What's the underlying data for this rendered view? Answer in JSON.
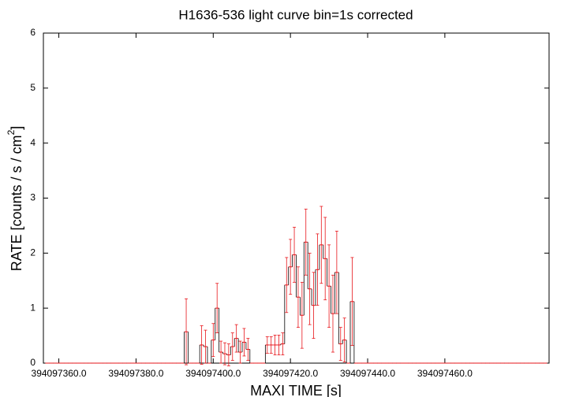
{
  "chart_data": {
    "type": "errorbar",
    "title": "H1636-536 light curve bin=1s corrected",
    "xlabel": "MAXI TIME [s]",
    "ylabel": "RATE [counts / s / cm",
    "ylabel_sup": "2",
    "ylabel_end": "]",
    "color": "#e8161b",
    "xlim": [
      394097356,
      394097487
    ],
    "ylim": [
      0,
      6
    ],
    "xticks": [
      {
        "value": 394097360,
        "label": "394097360.0"
      },
      {
        "value": 394097380,
        "label": "394097380.0"
      },
      {
        "value": 394097400,
        "label": "394097400.0"
      },
      {
        "value": 394097420,
        "label": "394097420.0"
      },
      {
        "value": 394097440,
        "label": "394097440.0"
      },
      {
        "value": 394097460,
        "label": "394097460.0"
      }
    ],
    "yticks": [
      0,
      1,
      2,
      3,
      4,
      5,
      6
    ],
    "x": [
      394097357,
      394097358,
      394097359,
      394097360,
      394097361,
      394097362,
      394097363,
      394097364,
      394097365,
      394097366,
      394097367,
      394097368,
      394097369,
      394097370,
      394097371,
      394097372,
      394097373,
      394097374,
      394097375,
      394097376,
      394097377,
      394097378,
      394097379,
      394097380,
      394097381,
      394097382,
      394097383,
      394097384,
      394097385,
      394097386,
      394097387,
      394097388,
      394097389,
      394097390,
      394097391,
      394097392,
      394097393,
      394097394,
      394097395,
      394097396,
      394097397,
      394097398,
      394097399,
      394097400,
      394097401,
      394097402,
      394097403,
      394097404,
      394097405,
      394097406,
      394097407,
      394097408,
      394097409,
      394097410,
      394097411,
      394097412,
      394097413,
      394097414,
      394097415,
      394097416,
      394097417,
      394097418,
      394097419,
      394097420,
      394097421,
      394097422,
      394097423,
      394097424,
      394097425,
      394097426,
      394097427,
      394097428,
      394097429,
      394097430,
      394097431,
      394097432,
      394097433,
      394097434,
      394097435,
      394097436,
      394097437,
      394097438,
      394097439,
      394097440,
      394097441,
      394097442,
      394097443,
      394097444,
      394097445,
      394097446,
      394097447,
      394097448,
      394097449,
      394097450,
      394097451,
      394097452,
      394097453,
      394097454,
      394097455,
      394097456,
      394097457,
      394097458,
      394097459,
      394097460,
      394097461,
      394097462,
      394097463,
      394097464,
      394097465,
      394097466,
      394097467,
      394097468,
      394097469,
      394097470,
      394097471,
      394097472,
      394097473,
      394097474,
      394097475,
      394097476,
      394097477,
      394097478,
      394097479,
      394097480,
      394097481,
      394097482,
      394097483,
      394097484,
      394097485,
      394097486
    ],
    "values": [
      0,
      0,
      0,
      0,
      0,
      0,
      0,
      0,
      0,
      0,
      0,
      0,
      0,
      0,
      0,
      0,
      0,
      0,
      0,
      0,
      0,
      0,
      0,
      0,
      0,
      0,
      0,
      0,
      0,
      0,
      0,
      0,
      0,
      0,
      0,
      0,
      0.57,
      0,
      0,
      0,
      0.33,
      0.3,
      0,
      0.42,
      1.0,
      0.2,
      0.17,
      0.15,
      0.3,
      0.45,
      0.2,
      0.38,
      0.25,
      0,
      0,
      0,
      0,
      0.33,
      0.33,
      0.33,
      0.33,
      0.35,
      1.42,
      1.75,
      1.97,
      1.2,
      0.87,
      2.2,
      1.35,
      1.05,
      1.7,
      2.15,
      1.9,
      1.4,
      0.9,
      1.65,
      0.35,
      0.42,
      0,
      1.12,
      0,
      0,
      0,
      0,
      0,
      0,
      0,
      0,
      0,
      0,
      0,
      0,
      0,
      0,
      0,
      0,
      0,
      0,
      0,
      0,
      0,
      0,
      0,
      0,
      0,
      0,
      0,
      0,
      0,
      0,
      0,
      0,
      0,
      0,
      0,
      0,
      0,
      0,
      0,
      0,
      0,
      0,
      0,
      0,
      0,
      0,
      0,
      0,
      0,
      0
    ],
    "errors": [
      0,
      0,
      0,
      0,
      0,
      0,
      0,
      0,
      0,
      0,
      0,
      0,
      0,
      0,
      0,
      0,
      0,
      0,
      0,
      0,
      0,
      0,
      0,
      0,
      0,
      0,
      0,
      0,
      0,
      0,
      0,
      0,
      0,
      0,
      0,
      0,
      0.6,
      0,
      0,
      0,
      0.35,
      0.3,
      0,
      0.3,
      0.45,
      0.2,
      0.2,
      0.2,
      0.25,
      0.25,
      0.2,
      0.25,
      0.2,
      0,
      0,
      0,
      0,
      0.15,
      0.15,
      0.18,
      0.18,
      0.2,
      0.5,
      0.5,
      0.5,
      0.55,
      0.6,
      0.6,
      0.65,
      0.6,
      0.65,
      0.7,
      0.75,
      0.75,
      0.7,
      0.75,
      0.3,
      0.4,
      0,
      0.8,
      0,
      0,
      0,
      0,
      0,
      0,
      0,
      0,
      0,
      0,
      0,
      0,
      0,
      0,
      0,
      0,
      0,
      0,
      0,
      0,
      0,
      0,
      0,
      0,
      0,
      0,
      0,
      0,
      0,
      0,
      0,
      0,
      0,
      0,
      0,
      0,
      0,
      0,
      0,
      0,
      0,
      0,
      0,
      0,
      0,
      0,
      0,
      0,
      0,
      0
    ]
  }
}
